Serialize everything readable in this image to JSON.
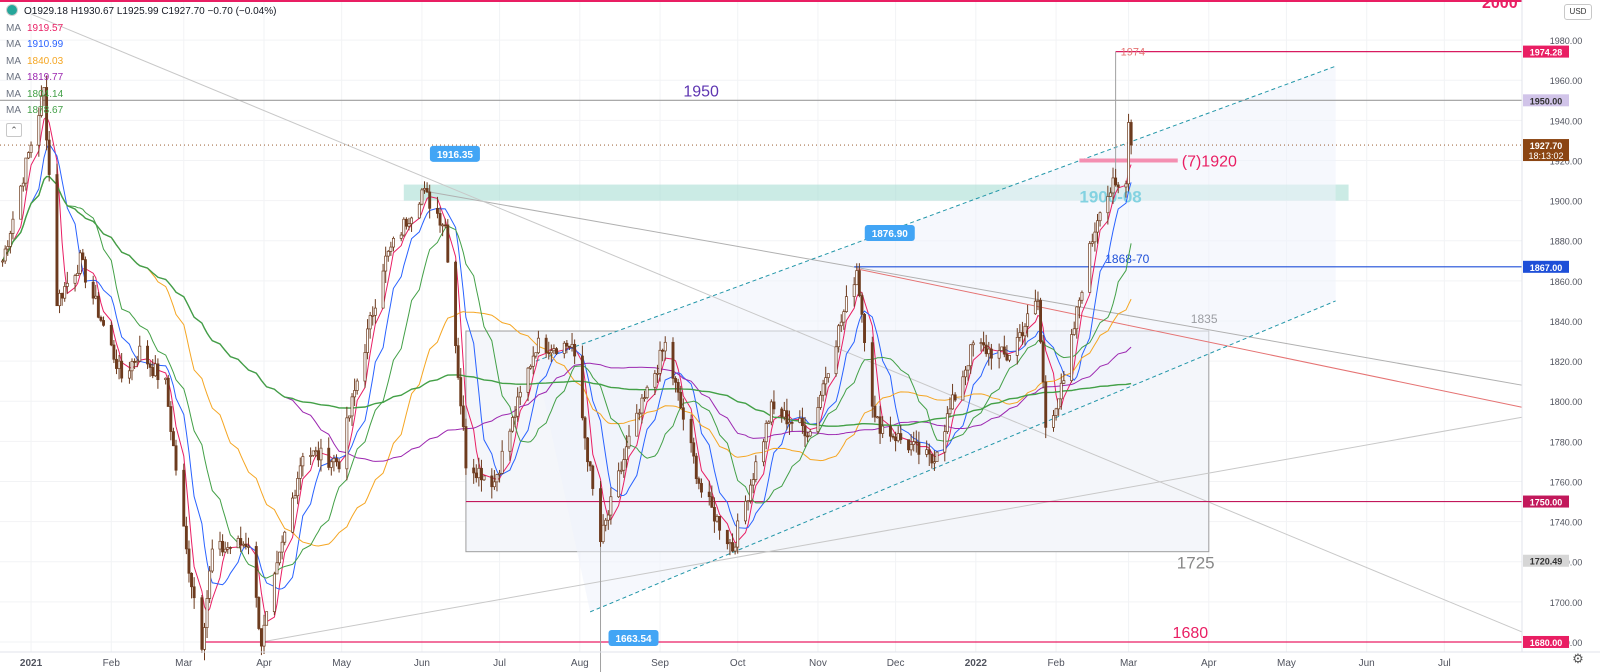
{
  "legend": {
    "ohlc": "O1929.18  H1930.67  L1925.99  C1927.70  −0.70 (−0.04%)",
    "ma_label": "MA",
    "mas": [
      {
        "label": "MA",
        "value": "1919.57",
        "color": "#e91e63"
      },
      {
        "label": "MA",
        "value": "1910.99",
        "color": "#2962ff"
      },
      {
        "label": "MA",
        "value": "1840.03",
        "color": "#f5a623"
      },
      {
        "label": "MA",
        "value": "1819.77",
        "color": "#9c27b0"
      },
      {
        "label": "MA",
        "value": "1804.14",
        "color": "#43a047"
      },
      {
        "label": "MA",
        "value": "1878.67",
        "color": "#43a047"
      }
    ],
    "collapse_icon": "chevron-up-icon"
  },
  "currency_label": "USD",
  "settings_icon": "gear-icon",
  "chart_data": {
    "type": "candlestick",
    "instrument_hint": "XAU/USD daily",
    "y_range": [
      1675,
      2000
    ],
    "y_ticks": [
      1680,
      1700,
      1720,
      1740,
      1760,
      1780,
      1800,
      1820,
      1840,
      1860,
      1880,
      1900,
      1920,
      1940,
      1960,
      1980
    ],
    "x_labels": [
      {
        "label": "2021",
        "date": "2021-01-01"
      },
      {
        "label": "Feb",
        "date": "2021-02-01"
      },
      {
        "label": "Mar",
        "date": "2021-03-01"
      },
      {
        "label": "Apr",
        "date": "2021-04-01"
      },
      {
        "label": "May",
        "date": "2021-05-01"
      },
      {
        "label": "Jun",
        "date": "2021-06-01"
      },
      {
        "label": "Jul",
        "date": "2021-07-01"
      },
      {
        "label": "Aug",
        "date": "2021-08-01"
      },
      {
        "label": "Sep",
        "date": "2021-09-01"
      },
      {
        "label": "Oct",
        "date": "2021-10-01"
      },
      {
        "label": "Nov",
        "date": "2021-11-01"
      },
      {
        "label": "Dec",
        "date": "2021-12-01"
      },
      {
        "label": "2022",
        "date": "2022-01-01"
      },
      {
        "label": "Feb",
        "date": "2022-02-01"
      },
      {
        "label": "Mar",
        "date": "2022-03-01"
      },
      {
        "label": "Apr",
        "date": "2022-04-01"
      },
      {
        "label": "May",
        "date": "2022-05-01"
      },
      {
        "label": "Jun",
        "date": "2022-06-01"
      },
      {
        "label": "Jul",
        "date": "2022-07-01"
      }
    ],
    "x_range": [
      "2020-12-20",
      "2022-07-31"
    ],
    "price_anchors": [
      {
        "date": "2020-12-21",
        "close": 1870
      },
      {
        "date": "2021-01-06",
        "close": 1955
      },
      {
        "date": "2021-01-11",
        "close": 1850
      },
      {
        "date": "2021-01-20",
        "close": 1870
      },
      {
        "date": "2021-02-05",
        "close": 1812
      },
      {
        "date": "2021-02-12",
        "close": 1825
      },
      {
        "date": "2021-02-22",
        "close": 1808
      },
      {
        "date": "2021-03-02",
        "close": 1725
      },
      {
        "date": "2021-03-08",
        "close": 1680
      },
      {
        "date": "2021-03-12",
        "close": 1725
      },
      {
        "date": "2021-03-26",
        "close": 1730
      },
      {
        "date": "2021-03-31",
        "close": 1680
      },
      {
        "date": "2021-04-16",
        "close": 1775
      },
      {
        "date": "2021-04-30",
        "close": 1770
      },
      {
        "date": "2021-05-17",
        "close": 1868
      },
      {
        "date": "2021-06-01",
        "close": 1905
      },
      {
        "date": "2021-06-10",
        "close": 1888
      },
      {
        "date": "2021-06-18",
        "close": 1770
      },
      {
        "date": "2021-06-29",
        "close": 1760
      },
      {
        "date": "2021-07-15",
        "close": 1828
      },
      {
        "date": "2021-07-29",
        "close": 1828
      },
      {
        "date": "2021-08-06",
        "close": 1755
      },
      {
        "date": "2021-08-09",
        "close": 1730
      },
      {
        "date": "2021-08-20",
        "close": 1780
      },
      {
        "date": "2021-09-03",
        "close": 1828
      },
      {
        "date": "2021-09-17",
        "close": 1755
      },
      {
        "date": "2021-09-29",
        "close": 1727
      },
      {
        "date": "2021-10-14",
        "close": 1796
      },
      {
        "date": "2021-10-29",
        "close": 1785
      },
      {
        "date": "2021-11-05",
        "close": 1818
      },
      {
        "date": "2021-11-16",
        "close": 1866
      },
      {
        "date": "2021-11-23",
        "close": 1790
      },
      {
        "date": "2021-12-15",
        "close": 1770
      },
      {
        "date": "2021-12-31",
        "close": 1828
      },
      {
        "date": "2022-01-13",
        "close": 1822
      },
      {
        "date": "2022-01-25",
        "close": 1850
      },
      {
        "date": "2022-01-28",
        "close": 1788
      },
      {
        "date": "2022-02-04",
        "close": 1808
      },
      {
        "date": "2022-02-11",
        "close": 1858
      },
      {
        "date": "2022-02-18",
        "close": 1898
      },
      {
        "date": "2022-02-23",
        "close": 1907
      },
      {
        "date": "2022-02-24",
        "close": 1905
      },
      {
        "date": "2022-02-28",
        "close": 1908
      },
      {
        "date": "2022-03-01",
        "close": 1943
      },
      {
        "date": "2022-03-02",
        "close": 1927.7
      }
    ],
    "last_candle": {
      "open": 1929.18,
      "high": 1930.67,
      "low": 1925.99,
      "close": 1927.7
    },
    "moving_averages": [
      {
        "color": "#e91e63",
        "lag_days": 5,
        "last": 1919.57
      },
      {
        "color": "#2962ff",
        "lag_days": 10,
        "last": 1910.99
      },
      {
        "color": "#f5a623",
        "lag_days": 40,
        "last": 1840.03
      },
      {
        "color": "#9c27b0",
        "lag_days": 80,
        "last": 1819.77
      },
      {
        "color": "#43a047",
        "lag_days": 200,
        "last": 1804.14
      },
      {
        "color": "#43a047",
        "lag_days": 20,
        "last": 1878.67
      }
    ],
    "horizontal_levels": [
      {
        "value": 1974.28,
        "color": "#d81b60",
        "start": "2022-02-24",
        "label": "1974"
      },
      {
        "value": 1950.0,
        "color": "#9e9e9e",
        "start": "2020-12-20",
        "label": "1950",
        "label_color": "#5e35b1",
        "label_date": "2021-09-10"
      },
      {
        "value": 1867.0,
        "color": "#1e4fd8",
        "start": "2021-11-15",
        "label": "1868-70",
        "label_color": "#1e4fd8",
        "label_date": "2022-02-20"
      },
      {
        "value": 1750.0,
        "color": "#c2185b",
        "start": "2021-06-18",
        "label": "",
        "label_color": "",
        "label_date": ""
      },
      {
        "value": 1680.0,
        "color": "#e91e63",
        "start": "2021-03-08",
        "label": "1680",
        "label_color": "#e91e63",
        "label_date": "2022-03-18"
      }
    ],
    "zone": {
      "label": "1900-08",
      "low": 1900,
      "high": 1908,
      "start": "2021-05-25",
      "end": "2022-05-25",
      "color": "#a8ddd3",
      "label_color": "#00acc1"
    },
    "level_1920": {
      "label": "(7)1920",
      "value": 1920,
      "start": "2022-02-10",
      "end": "2022-03-20",
      "color": "#f48fb1"
    },
    "range_box": {
      "top": 1835,
      "bottom": 1725,
      "start": "2021-06-18",
      "end": "2022-04-01",
      "top_label": "1835",
      "bottom_label": "1725"
    },
    "channel": {
      "upper": [
        [
          "2021-07-15",
          1820
        ],
        [
          "2022-05-20",
          1967
        ]
      ],
      "lower": [
        [
          "2021-08-05",
          1695
        ],
        [
          "2022-05-20",
          1850
        ]
      ],
      "color": "#2196a8"
    },
    "trend_lines": [
      {
        "from": [
          "2021-11-16",
          1866
        ],
        "to": [
          "2022-07-31",
          1797
        ],
        "color": "#e57373"
      },
      {
        "from": [
          "2021-06-01",
          1905
        ],
        "to": [
          "2022-07-31",
          1808
        ],
        "color": "#b0b0b0"
      },
      {
        "from": [
          "2021-01-01",
          1993
        ],
        "to": [
          "2022-07-31",
          1685
        ],
        "color": "#c8c8c8"
      },
      {
        "from": [
          "2021-03-31",
          1680
        ],
        "to": [
          "2022-07-31",
          1792
        ],
        "color": "#c8c8c8"
      }
    ],
    "vertical_markers": [
      {
        "date": "2022-02-24",
        "from": 1908,
        "to": 1974.28,
        "color": "#a0a0a0"
      },
      {
        "date": "2021-08-09",
        "from": 1663.54,
        "to": 1750,
        "color": "#a0a0a0"
      }
    ],
    "callouts": [
      {
        "label": "1916.35",
        "date": "2021-06-01",
        "value": 1916.35
      },
      {
        "label": "1876.90",
        "date": "2021-11-16",
        "value": 1876.9
      },
      {
        "label": "1663.54",
        "date": "2021-08-09",
        "value": 1663.54
      }
    ],
    "axis_badges": [
      {
        "label": "1974.28",
        "value": 1974.28,
        "bg": "#e91e63",
        "fg": "#ffffff"
      },
      {
        "label": "1950.00",
        "value": 1950.0,
        "bg": "#d1c4e9",
        "fg": "#333333"
      },
      {
        "label": "1927.70",
        "value": 1927.7,
        "bg": "#8b4513",
        "fg": "#ffffff",
        "sub": "18:13:02"
      },
      {
        "label": "1867.00",
        "value": 1867.0,
        "bg": "#1e4fd8",
        "fg": "#ffffff"
      },
      {
        "label": "1750.00",
        "value": 1750.0,
        "bg": "#c2185b",
        "fg": "#ffffff"
      },
      {
        "label": "1720.49",
        "value": 1720.49,
        "bg": "#d6d6d6",
        "fg": "#333333"
      },
      {
        "label": "1680.00",
        "value": 1680.0,
        "bg": "#e91e63",
        "fg": "#ffffff"
      }
    ],
    "top_level_label": "2000",
    "colors": {
      "candle": "#6d3b1e",
      "grid": "#f2f3f5",
      "axis_text": "#50535e",
      "callout": "#42a5f5"
    }
  }
}
